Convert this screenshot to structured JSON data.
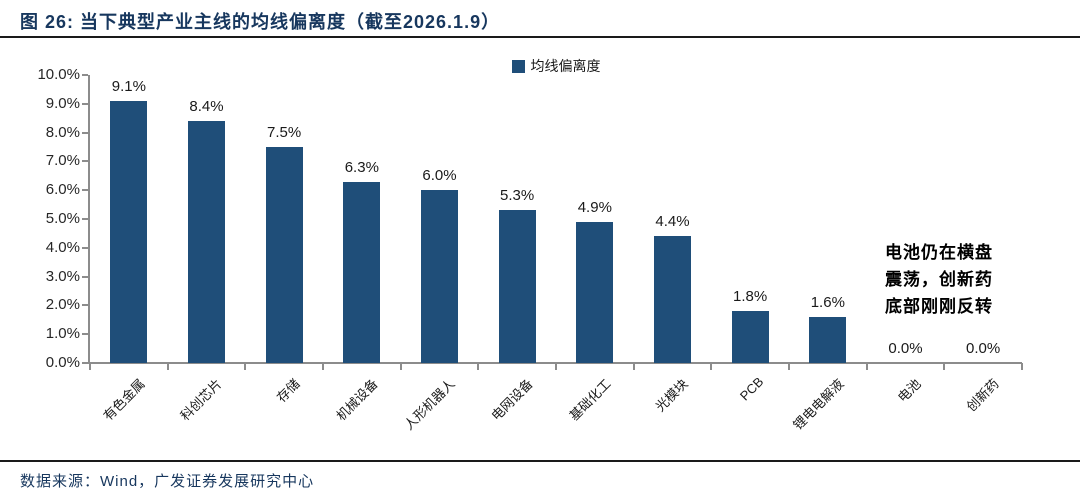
{
  "figure": {
    "title": "图 26:  当下典型产业主线的均线偏离度（截至2026.1.9）",
    "source": "数据来源：Wind，广发证券发展研究中心"
  },
  "annotation": {
    "text": "电池仍在横盘震荡，创新药底部刚刚反转"
  },
  "colors": {
    "bar": "#1F4E79",
    "title_text": "#17375E",
    "source_text": "#17375E",
    "axis": "#8C8C8C",
    "divider": "#1A1A1A"
  },
  "chart_data": {
    "type": "bar",
    "title": "当下典型产业主线的均线偏离度（截至2026.1.9）",
    "legend_label": "均线偏离度",
    "legend_position": "top-center",
    "categories": [
      "有色金属",
      "科创芯片",
      "存储",
      "机械设备",
      "人形机器人",
      "电网设备",
      "基础化工",
      "光模块",
      "PCB",
      "锂电电解液",
      "电池",
      "创新药"
    ],
    "values": [
      9.1,
      8.4,
      7.5,
      6.3,
      6.0,
      5.3,
      4.9,
      4.4,
      1.8,
      1.6,
      0.0,
      0.0
    ],
    "value_labels": [
      "9.1%",
      "8.4%",
      "7.5%",
      "6.3%",
      "6.0%",
      "5.3%",
      "4.9%",
      "4.4%",
      "1.8%",
      "1.6%",
      "0.0%",
      "0.0%"
    ],
    "xlabel": "",
    "ylabel": "",
    "ylim": [
      0,
      10
    ],
    "ytick_step": 1,
    "ytick_labels": [
      "0.0%",
      "1.0%",
      "2.0%",
      "3.0%",
      "4.0%",
      "5.0%",
      "6.0%",
      "7.0%",
      "8.0%",
      "9.0%",
      "10.0%"
    ],
    "grid": false,
    "unit": "percent"
  }
}
